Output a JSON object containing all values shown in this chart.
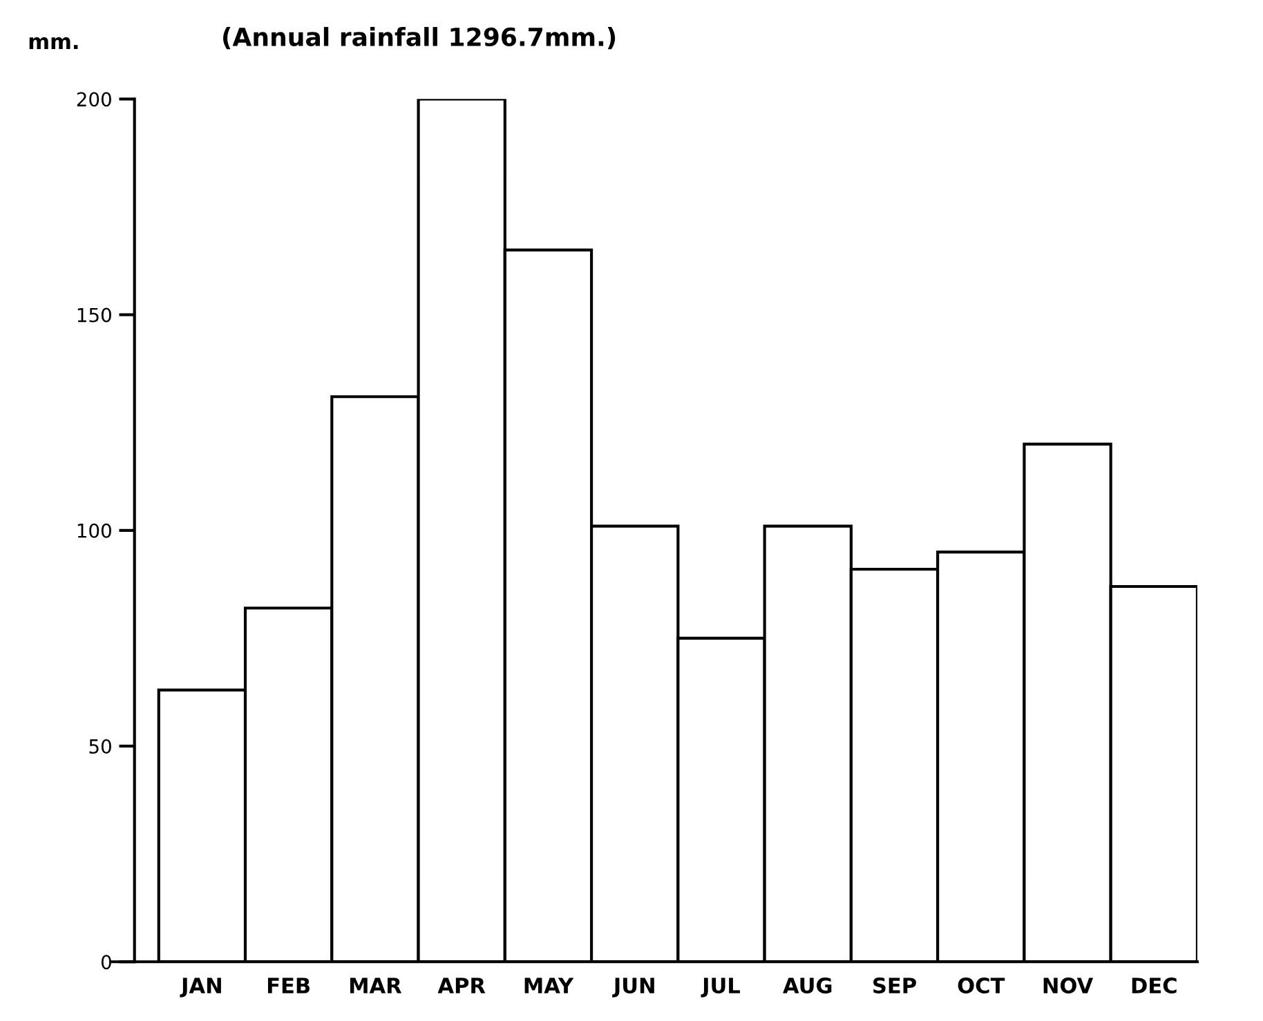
{
  "chart_data": {
    "type": "bar",
    "title": "(Annual rainfall 1296.7mm.)",
    "ylabel": "mm.",
    "categories": [
      "JAN",
      "FEB",
      "MAR",
      "APR",
      "MAY",
      "JUN",
      "JUL",
      "AUG",
      "SEP",
      "OCT",
      "NOV",
      "DEC"
    ],
    "values": [
      63,
      82,
      131,
      200,
      165,
      101,
      75,
      101,
      91,
      95,
      120,
      87
    ],
    "color": "#ffffff",
    "ylim": [
      0,
      200
    ],
    "yticks": [
      0,
      50,
      100,
      150,
      200
    ],
    "grid": false,
    "legend": false
  }
}
